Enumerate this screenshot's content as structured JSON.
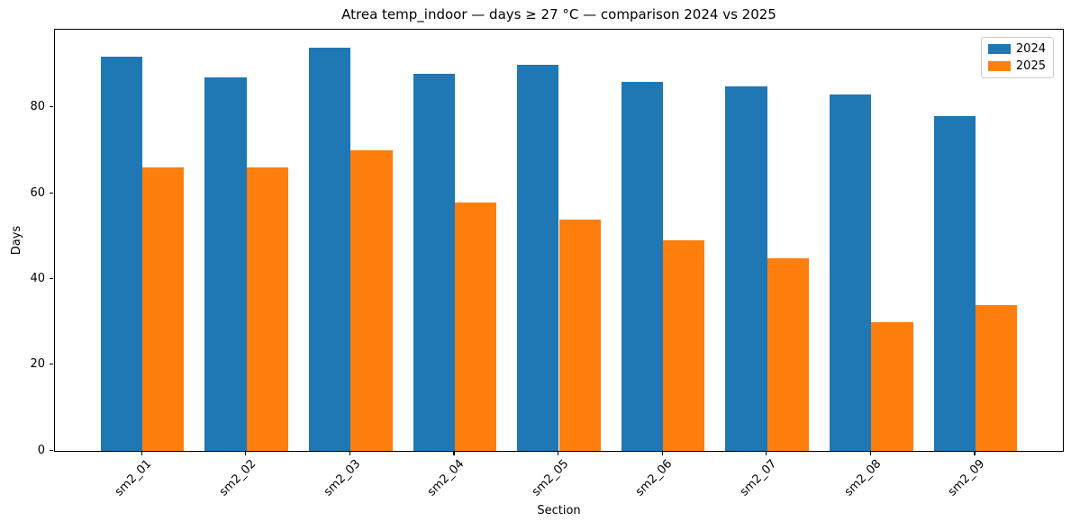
{
  "chart_data": {
    "type": "bar",
    "title": "Atrea temp_indoor — days ≥ 27 °C — comparison 2024 vs 2025",
    "xlabel": "Section",
    "ylabel": "Days",
    "categories": [
      "sm2_01",
      "sm2_02",
      "sm2_03",
      "sm2_04",
      "sm2_05",
      "sm2_06",
      "sm2_07",
      "sm2_08",
      "sm2_09"
    ],
    "series": [
      {
        "name": "2024",
        "color": "#1f77b4",
        "values": [
          92,
          87,
          94,
          88,
          90,
          86,
          85,
          83,
          78
        ]
      },
      {
        "name": "2025",
        "color": "#ff7f0e",
        "values": [
          66,
          66,
          70,
          58,
          54,
          49,
          45,
          30,
          34
        ]
      }
    ],
    "yticks": [
      0,
      20,
      40,
      60,
      80
    ],
    "ylim": [
      0,
      98.2
    ],
    "xlim": [
      -0.84,
      8.84
    ],
    "bar_width": 0.4,
    "legend_position": "upper right",
    "grid": false,
    "background": "#ffffff",
    "spine_color": "#000000"
  }
}
